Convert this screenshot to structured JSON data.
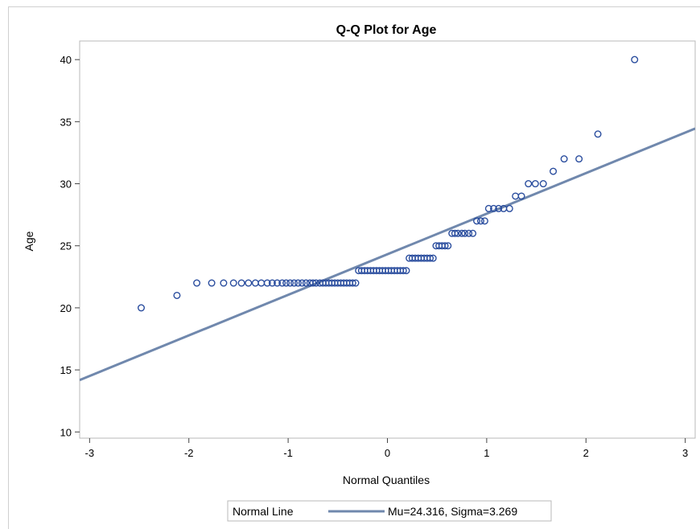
{
  "chart_data": {
    "type": "scatter",
    "title": "Q-Q Plot for Age",
    "xlabel": "Normal Quantiles",
    "ylabel": "Age",
    "xlim": [
      -3.1,
      3.1
    ],
    "ylim": [
      9.5,
      41.5
    ],
    "xticks": [
      -3,
      -2,
      -1,
      0,
      1,
      2,
      3
    ],
    "yticks": [
      10,
      15,
      20,
      25,
      30,
      35,
      40
    ],
    "grid": false,
    "legend_position": "bottom",
    "colors": {
      "marker": "#2a4d9e",
      "line": "#7088ad",
      "frame": "#b8b8b8"
    },
    "series": [
      {
        "type": "scatter",
        "points": [
          [
            -2.48,
            20
          ],
          [
            -2.12,
            21
          ],
          [
            -1.92,
            22
          ],
          [
            -1.77,
            22
          ],
          [
            -1.65,
            22
          ],
          [
            -1.55,
            22
          ],
          [
            -1.47,
            22
          ],
          [
            -1.4,
            22
          ],
          [
            -1.33,
            22
          ],
          [
            -1.27,
            22
          ],
          [
            -1.21,
            22
          ],
          [
            -1.16,
            22
          ],
          [
            -1.11,
            22
          ],
          [
            -1.06,
            22
          ],
          [
            -1.02,
            22
          ],
          [
            -0.98,
            22
          ],
          [
            -0.94,
            22
          ],
          [
            -0.9,
            22
          ],
          [
            -0.86,
            22
          ],
          [
            -0.82,
            22
          ],
          [
            -0.78,
            22
          ],
          [
            -0.75,
            22
          ],
          [
            -0.72,
            22
          ],
          [
            -0.68,
            22
          ],
          [
            -0.65,
            22
          ],
          [
            -0.62,
            22
          ],
          [
            -0.59,
            22
          ],
          [
            -0.56,
            22
          ],
          [
            -0.53,
            22
          ],
          [
            -0.5,
            22
          ],
          [
            -0.47,
            22
          ],
          [
            -0.44,
            22
          ],
          [
            -0.41,
            22
          ],
          [
            -0.38,
            22
          ],
          [
            -0.35,
            22
          ],
          [
            -0.32,
            22
          ],
          [
            -0.29,
            23
          ],
          [
            -0.26,
            23
          ],
          [
            -0.23,
            23
          ],
          [
            -0.2,
            23
          ],
          [
            -0.17,
            23
          ],
          [
            -0.14,
            23
          ],
          [
            -0.11,
            23
          ],
          [
            -0.08,
            23
          ],
          [
            -0.05,
            23
          ],
          [
            -0.02,
            23
          ],
          [
            0.01,
            23
          ],
          [
            0.04,
            23
          ],
          [
            0.07,
            23
          ],
          [
            0.1,
            23
          ],
          [
            0.13,
            23
          ],
          [
            0.16,
            23
          ],
          [
            0.19,
            23
          ],
          [
            0.22,
            24
          ],
          [
            0.25,
            24
          ],
          [
            0.28,
            24
          ],
          [
            0.31,
            24
          ],
          [
            0.34,
            24
          ],
          [
            0.37,
            24
          ],
          [
            0.4,
            24
          ],
          [
            0.43,
            24
          ],
          [
            0.46,
            24
          ],
          [
            0.49,
            25
          ],
          [
            0.52,
            25
          ],
          [
            0.55,
            25
          ],
          [
            0.58,
            25
          ],
          [
            0.61,
            25
          ],
          [
            0.65,
            26
          ],
          [
            0.68,
            26
          ],
          [
            0.71,
            26
          ],
          [
            0.75,
            26
          ],
          [
            0.78,
            26
          ],
          [
            0.82,
            26
          ],
          [
            0.86,
            26
          ],
          [
            0.9,
            27
          ],
          [
            0.94,
            27
          ],
          [
            0.98,
            27
          ],
          [
            1.02,
            28
          ],
          [
            1.07,
            28
          ],
          [
            1.12,
            28
          ],
          [
            1.17,
            28
          ],
          [
            1.23,
            28
          ],
          [
            1.29,
            29
          ],
          [
            1.35,
            29
          ],
          [
            1.42,
            30
          ],
          [
            1.49,
            30
          ],
          [
            1.57,
            30
          ],
          [
            1.67,
            31
          ],
          [
            1.78,
            32
          ],
          [
            1.93,
            32
          ],
          [
            2.12,
            34
          ],
          [
            2.49,
            40
          ]
        ]
      },
      {
        "type": "line",
        "name": "Normal Line",
        "mu": 24.316,
        "sigma": 3.269
      }
    ],
    "legend": {
      "title": "Normal Line",
      "entry": "Mu=24.316, Sigma=3.269"
    }
  }
}
